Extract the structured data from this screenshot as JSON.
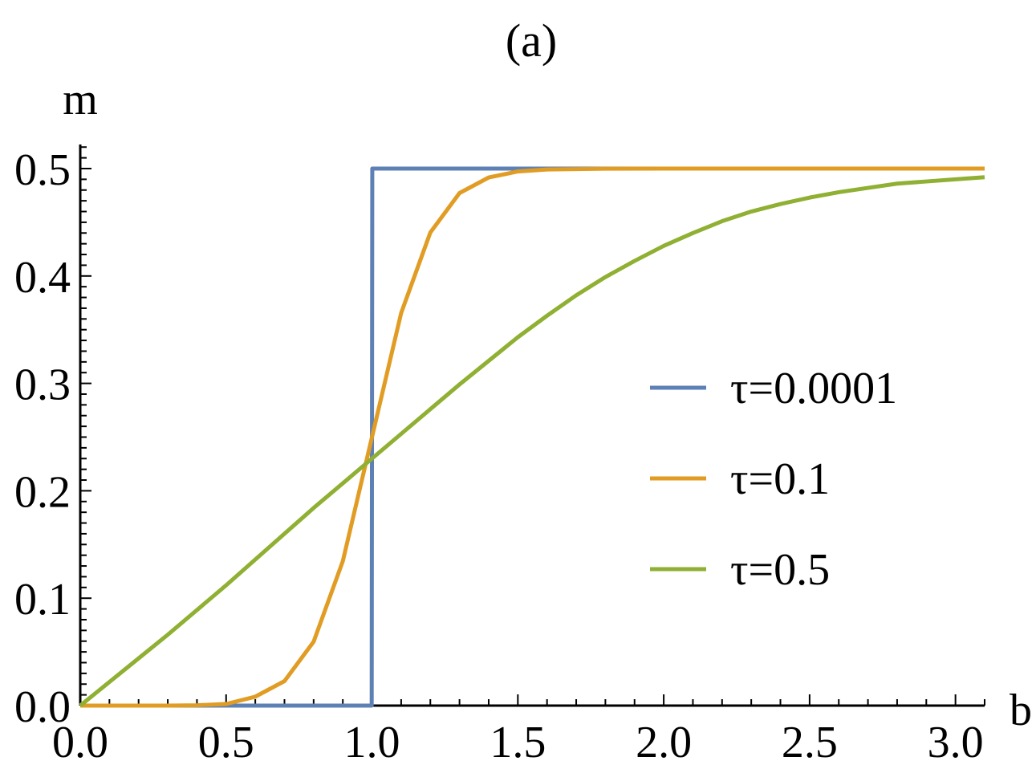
{
  "chart_data": {
    "type": "line",
    "title": "(a)",
    "xlabel": "b",
    "ylabel": "m",
    "xlim": [
      0.0,
      3.1
    ],
    "ylim": [
      0.0,
      0.5
    ],
    "x_ticks": [
      "0.0",
      "0.5",
      "1.0",
      "1.5",
      "2.0",
      "2.5",
      "3.0"
    ],
    "y_ticks": [
      "0.0",
      "0.1",
      "0.2",
      "0.3",
      "0.4",
      "0.5"
    ],
    "grid": false,
    "legend_position": "right",
    "series": [
      {
        "name": "τ=0.0001",
        "color": "#5E81B5",
        "points": [
          [
            0.0,
            0.0
          ],
          [
            0.999,
            0.0
          ],
          [
            1.0,
            0.25
          ],
          [
            1.001,
            0.5
          ],
          [
            3.1,
            0.5
          ]
        ]
      },
      {
        "name": "τ=0.1",
        "color": "#E19C24",
        "points": [
          [
            0.0,
            0.0
          ],
          [
            0.3,
            0.0
          ],
          [
            0.4,
            0.0003
          ],
          [
            0.5,
            0.0015
          ],
          [
            0.6,
            0.0083
          ],
          [
            0.7,
            0.0228
          ],
          [
            0.8,
            0.0595
          ],
          [
            0.9,
            0.1345
          ],
          [
            1.0,
            0.25
          ],
          [
            1.1,
            0.3655
          ],
          [
            1.2,
            0.4405
          ],
          [
            1.3,
            0.4772
          ],
          [
            1.4,
            0.4917
          ],
          [
            1.5,
            0.4973
          ],
          [
            1.6,
            0.4992
          ],
          [
            1.8,
            0.4999
          ],
          [
            2.0,
            0.5
          ],
          [
            3.1,
            0.5
          ]
        ]
      },
      {
        "name": "τ=0.5",
        "color": "#8FB032",
        "points": [
          [
            0.0,
            0.0
          ],
          [
            0.1,
            0.022
          ],
          [
            0.2,
            0.044
          ],
          [
            0.3,
            0.066
          ],
          [
            0.4,
            0.089
          ],
          [
            0.5,
            0.112
          ],
          [
            0.6,
            0.136
          ],
          [
            0.7,
            0.16
          ],
          [
            0.8,
            0.184
          ],
          [
            0.9,
            0.207
          ],
          [
            1.0,
            0.23
          ],
          [
            1.1,
            0.253
          ],
          [
            1.2,
            0.276
          ],
          [
            1.3,
            0.299
          ],
          [
            1.4,
            0.321
          ],
          [
            1.5,
            0.343
          ],
          [
            1.6,
            0.363
          ],
          [
            1.7,
            0.382
          ],
          [
            1.8,
            0.399
          ],
          [
            1.9,
            0.414
          ],
          [
            2.0,
            0.428
          ],
          [
            2.1,
            0.44
          ],
          [
            2.2,
            0.451
          ],
          [
            2.3,
            0.46
          ],
          [
            2.4,
            0.467
          ],
          [
            2.5,
            0.473
          ],
          [
            2.6,
            0.478
          ],
          [
            2.7,
            0.482
          ],
          [
            2.8,
            0.486
          ],
          [
            2.9,
            0.488
          ],
          [
            3.0,
            0.49
          ],
          [
            3.1,
            0.492
          ]
        ]
      }
    ]
  }
}
